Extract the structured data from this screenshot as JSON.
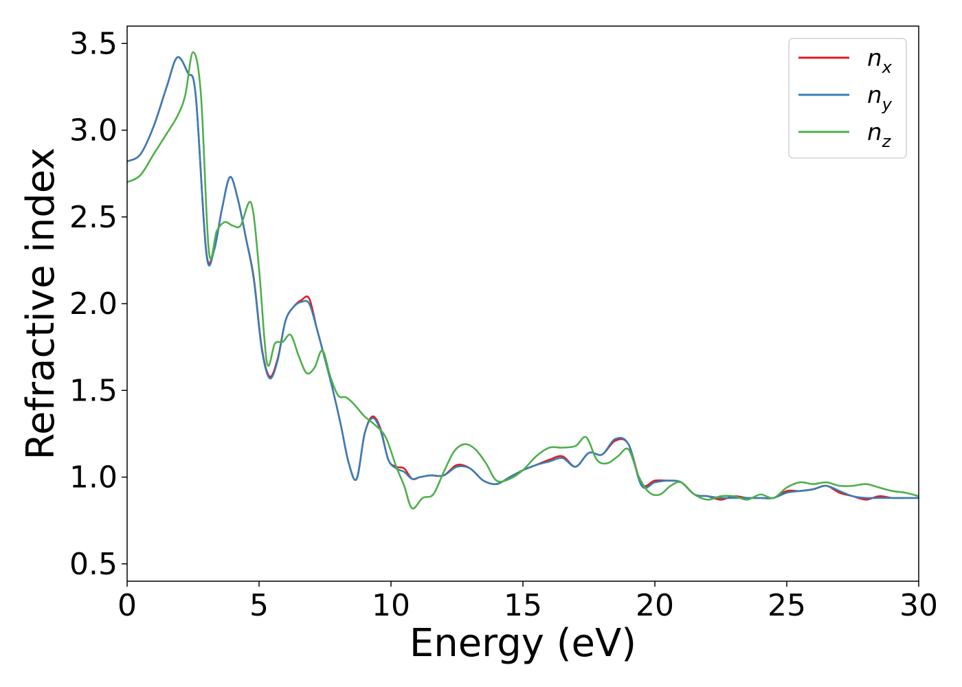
{
  "chart_data": {
    "type": "line",
    "title": "",
    "xlabel": "Energy (eV)",
    "ylabel": "Refractive index",
    "xlim": [
      0,
      30
    ],
    "ylim": [
      0.4,
      3.6
    ],
    "xticks": [
      0,
      5,
      10,
      15,
      20,
      25,
      30
    ],
    "xtick_labels": [
      "0",
      "5",
      "10",
      "15",
      "20",
      "25",
      "30"
    ],
    "yticks": [
      0.5,
      1.0,
      1.5,
      2.0,
      2.5,
      3.0,
      3.5
    ],
    "ytick_labels": [
      "0.5",
      "1.0",
      "1.5",
      "2.0",
      "2.5",
      "3.0",
      "3.5"
    ],
    "grid": false,
    "legend_position": "top-right",
    "series": [
      {
        "name": "n",
        "subscript": "x",
        "color": "#e41a1c",
        "x": [
          0,
          0.5,
          1.0,
          1.5,
          1.9,
          2.3,
          2.6,
          3.0,
          3.3,
          3.6,
          3.9,
          4.2,
          4.5,
          4.8,
          5.1,
          5.4,
          5.7,
          6.0,
          6.3,
          6.6,
          6.9,
          7.2,
          7.5,
          7.8,
          8.1,
          8.4,
          8.7,
          9.0,
          9.3,
          9.6,
          9.9,
          10.2,
          10.5,
          10.8,
          11.1,
          11.5,
          12.0,
          12.5,
          13.0,
          13.5,
          14.0,
          14.5,
          15.0,
          15.5,
          16.0,
          16.5,
          17.0,
          17.5,
          18.0,
          18.5,
          19.0,
          19.5,
          20.0,
          20.5,
          21.0,
          21.5,
          22.0,
          22.5,
          23.0,
          23.5,
          24.0,
          24.5,
          25.0,
          25.5,
          26.0,
          26.5,
          27.0,
          27.5,
          28.0,
          28.5,
          29.0,
          29.5,
          30.0
        ],
        "y": [
          2.82,
          2.86,
          3.02,
          3.25,
          3.42,
          3.33,
          3.2,
          2.3,
          2.32,
          2.55,
          2.73,
          2.6,
          2.38,
          2.15,
          1.75,
          1.58,
          1.68,
          1.9,
          1.98,
          2.02,
          2.03,
          1.85,
          1.68,
          1.5,
          1.3,
          1.08,
          0.99,
          1.25,
          1.35,
          1.28,
          1.1,
          1.06,
          1.05,
          0.99,
          1.0,
          1.01,
          1.01,
          1.07,
          1.05,
          0.98,
          0.96,
          1.0,
          1.04,
          1.07,
          1.1,
          1.12,
          1.06,
          1.14,
          1.13,
          1.21,
          1.19,
          0.96,
          0.98,
          0.98,
          0.97,
          0.9,
          0.89,
          0.87,
          0.89,
          0.88,
          0.88,
          0.88,
          0.92,
          0.92,
          0.93,
          0.95,
          0.91,
          0.89,
          0.87,
          0.89,
          0.88,
          0.88,
          0.88
        ]
      },
      {
        "name": "n",
        "subscript": "y",
        "color": "#377eb8",
        "x": [
          0,
          0.5,
          1.0,
          1.5,
          1.9,
          2.3,
          2.6,
          3.0,
          3.3,
          3.6,
          3.9,
          4.2,
          4.5,
          4.8,
          5.1,
          5.4,
          5.7,
          6.0,
          6.3,
          6.6,
          6.9,
          7.2,
          7.5,
          7.8,
          8.1,
          8.4,
          8.7,
          9.0,
          9.3,
          9.6,
          9.9,
          10.2,
          10.5,
          10.8,
          11.1,
          11.5,
          12.0,
          12.5,
          13.0,
          13.5,
          14.0,
          14.5,
          15.0,
          15.5,
          16.0,
          16.5,
          17.0,
          17.5,
          18.0,
          18.5,
          19.0,
          19.5,
          20.0,
          20.5,
          21.0,
          21.5,
          22.0,
          22.5,
          23.0,
          23.5,
          24.0,
          24.5,
          25.0,
          25.5,
          26.0,
          26.5,
          27.0,
          27.5,
          28.0,
          28.5,
          29.0,
          29.5,
          30.0
        ],
        "y": [
          2.82,
          2.86,
          3.02,
          3.25,
          3.42,
          3.33,
          3.2,
          2.29,
          2.31,
          2.55,
          2.73,
          2.6,
          2.38,
          2.14,
          1.74,
          1.57,
          1.67,
          1.9,
          1.98,
          2.01,
          2.0,
          1.85,
          1.68,
          1.5,
          1.3,
          1.08,
          0.99,
          1.25,
          1.34,
          1.27,
          1.1,
          1.05,
          1.03,
          0.99,
          1.0,
          1.01,
          1.01,
          1.06,
          1.05,
          0.98,
          0.96,
          1.0,
          1.04,
          1.07,
          1.09,
          1.11,
          1.06,
          1.14,
          1.13,
          1.22,
          1.19,
          0.95,
          0.97,
          0.98,
          0.97,
          0.9,
          0.89,
          0.88,
          0.88,
          0.88,
          0.88,
          0.88,
          0.91,
          0.92,
          0.93,
          0.95,
          0.92,
          0.89,
          0.88,
          0.88,
          0.88,
          0.88,
          0.88
        ]
      },
      {
        "name": "n",
        "subscript": "z",
        "color": "#4daf4a",
        "x": [
          0,
          0.5,
          1.0,
          1.5,
          1.9,
          2.2,
          2.5,
          2.8,
          3.1,
          3.4,
          3.7,
          4.0,
          4.3,
          4.7,
          5.0,
          5.3,
          5.6,
          5.9,
          6.2,
          6.5,
          6.8,
          7.1,
          7.4,
          7.7,
          8.0,
          8.3,
          8.6,
          9.0,
          9.4,
          9.8,
          10.2,
          10.5,
          10.8,
          11.2,
          11.6,
          12.0,
          12.4,
          12.8,
          13.2,
          13.6,
          14.0,
          14.5,
          15.0,
          15.5,
          16.0,
          16.5,
          17.0,
          17.4,
          17.8,
          18.2,
          18.6,
          19.0,
          19.4,
          19.8,
          20.2,
          20.6,
          21.0,
          21.5,
          22.0,
          22.5,
          23.0,
          23.5,
          24.0,
          24.5,
          25.0,
          25.5,
          26.0,
          26.5,
          27.0,
          27.5,
          28.0,
          28.5,
          29.0,
          29.5,
          30.0
        ],
        "y": [
          2.7,
          2.74,
          2.86,
          2.98,
          3.08,
          3.2,
          3.45,
          3.2,
          2.3,
          2.42,
          2.47,
          2.45,
          2.45,
          2.58,
          2.2,
          1.66,
          1.77,
          1.78,
          1.82,
          1.7,
          1.6,
          1.63,
          1.73,
          1.58,
          1.47,
          1.46,
          1.42,
          1.35,
          1.3,
          1.23,
          1.06,
          0.95,
          0.82,
          0.88,
          0.9,
          1.03,
          1.15,
          1.19,
          1.16,
          1.08,
          0.98,
          0.99,
          1.04,
          1.12,
          1.17,
          1.17,
          1.18,
          1.23,
          1.1,
          1.08,
          1.12,
          1.16,
          1.0,
          0.91,
          0.9,
          0.95,
          0.97,
          0.9,
          0.87,
          0.89,
          0.89,
          0.87,
          0.9,
          0.88,
          0.94,
          0.97,
          0.96,
          0.97,
          0.95,
          0.95,
          0.96,
          0.94,
          0.92,
          0.91,
          0.89
        ]
      }
    ]
  }
}
